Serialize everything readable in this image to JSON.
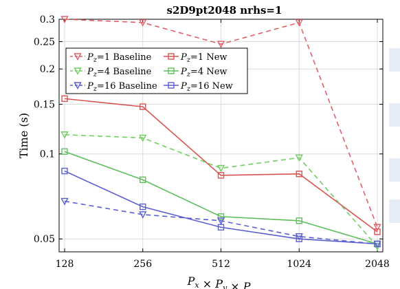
{
  "chart_data": {
    "type": "line",
    "title": "s2D9pt2048 nrhs=1",
    "xlabel": "P_x × P_y × P_z",
    "ylabel": "Time (s)",
    "x": [
      128,
      256,
      512,
      1024,
      2048
    ],
    "x_tick_labels": [
      "128",
      "256",
      "512",
      "1024",
      "2048"
    ],
    "x_scale": "log2",
    "y_scale": "log",
    "ylim": [
      0.045,
      0.3
    ],
    "y_ticks": [
      0.05,
      0.1,
      0.15,
      0.2,
      0.25,
      0.3
    ],
    "y_tick_labels": [
      "0.05",
      "0.1",
      "0.15",
      "0.2",
      "0.25",
      "0.3"
    ],
    "grid": true,
    "legend_position": "top-left",
    "series": [
      {
        "name": "P_z=1 Baseline",
        "color": "#e0606a",
        "dash": true,
        "marker": "triangle-down",
        "values": [
          0.3,
          0.292,
          0.245,
          0.292,
          0.055
        ]
      },
      {
        "name": "P_z=1 New",
        "color": "#d9534f",
        "dash": false,
        "marker": "square",
        "values": [
          0.157,
          0.147,
          0.084,
          0.085,
          0.053
        ]
      },
      {
        "name": "P_z=4 Baseline",
        "color": "#6fcf5f",
        "dash": true,
        "marker": "triangle-down",
        "values": [
          0.117,
          0.114,
          0.089,
          0.097,
          0.047
        ]
      },
      {
        "name": "P_z=4 New",
        "color": "#5cbf5a",
        "dash": false,
        "marker": "square",
        "values": [
          0.102,
          0.081,
          0.06,
          0.058,
          0.048
        ]
      },
      {
        "name": "P_z=16 Baseline",
        "color": "#5a5fcf",
        "dash": true,
        "marker": "triangle-down",
        "values": [
          0.068,
          0.061,
          0.058,
          0.051,
          0.048
        ]
      },
      {
        "name": "P_z=16 New",
        "color": "#5a5fcf",
        "dash": false,
        "marker": "square",
        "values": [
          0.087,
          0.065,
          0.055,
          0.05,
          0.048
        ]
      }
    ]
  }
}
